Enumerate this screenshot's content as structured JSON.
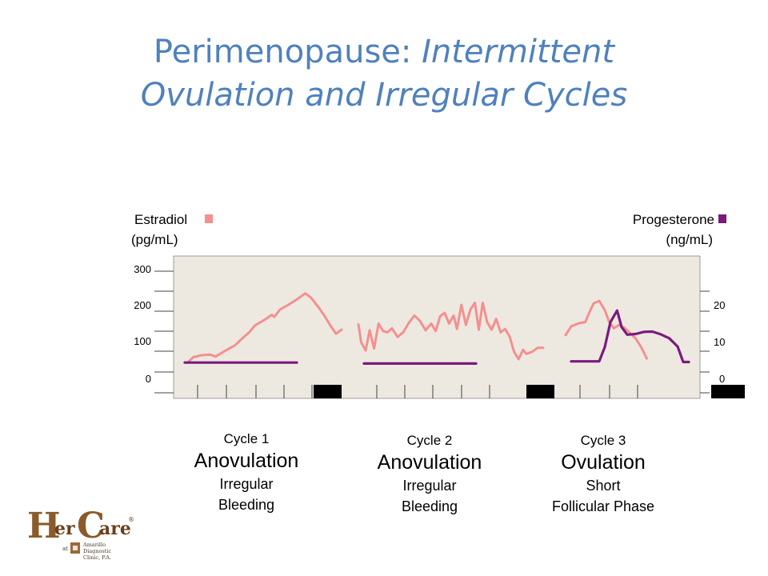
{
  "title": {
    "line1_plain": "Perimenopause: ",
    "line1_italic": "Intermittent",
    "line2_italic": "Ovulation and Irregular Cycles"
  },
  "colors": {
    "title": "#4f81bd",
    "estradiol": "#f4908e",
    "progesterone": "#7b1a7e",
    "panel": "#ede9e1",
    "menses": "#000000"
  },
  "logo": {
    "text_h": "H",
    "text_er": "er",
    "text_c": "C",
    "text_are": "are",
    "reg": "®",
    "at": "at",
    "clinic_line1": "Amarillo",
    "clinic_line2": "Diagnostic",
    "clinic_line3": "Clinic, P.A."
  },
  "chart_data": {
    "type": "line",
    "left_axis": {
      "label_line1": "Estradiol",
      "label_line2": "(pg/mL)",
      "ticks": [
        "300",
        "200",
        "100",
        "0"
      ],
      "range": [
        0,
        300
      ]
    },
    "right_axis": {
      "label_line1": "Progesterone",
      "label_line2": "(ng/mL)",
      "ticks": [
        "20",
        "10",
        "0"
      ],
      "range": [
        0,
        20
      ]
    },
    "series": [
      {
        "name": "Estradiol",
        "color": "#f4908e",
        "axis": "left",
        "segments": [
          [
            [
              0.5,
              28
            ],
            [
              1.5,
              44
            ],
            [
              3,
              50
            ],
            [
              4.5,
              52
            ],
            [
              5.5,
              46
            ],
            [
              7,
              61
            ],
            [
              9,
              80
            ],
            [
              10,
              96
            ],
            [
              11.5,
              118
            ],
            [
              12.5,
              138
            ],
            [
              13.5,
              148
            ],
            [
              14.5,
              158
            ],
            [
              15.5,
              170
            ],
            [
              16,
              164
            ],
            [
              17,
              186
            ],
            [
              18.5,
              200
            ],
            [
              20,
              216
            ],
            [
              21.5,
              234
            ],
            [
              22.5,
              222
            ],
            [
              24,
              190
            ],
            [
              25,
              166
            ],
            [
              26,
              138
            ],
            [
              27,
              114
            ],
            [
              28,
              126
            ]
          ],
          [
            [
              31,
              142
            ],
            [
              31.5,
              88
            ],
            [
              32.3,
              64
            ],
            [
              33,
              124
            ],
            [
              33.8,
              70
            ],
            [
              34.6,
              144
            ],
            [
              35.4,
              122
            ],
            [
              36.2,
              118
            ],
            [
              37,
              130
            ],
            [
              38,
              104
            ],
            [
              39,
              118
            ],
            [
              40,
              146
            ],
            [
              41,
              168
            ],
            [
              42,
              152
            ],
            [
              43,
              124
            ],
            [
              44,
              144
            ],
            [
              44.8,
              122
            ],
            [
              45.6,
              166
            ],
            [
              46.4,
              176
            ],
            [
              47.2,
              144
            ],
            [
              48,
              168
            ],
            [
              48.6,
              128
            ],
            [
              49.4,
              200
            ],
            [
              50.2,
              140
            ],
            [
              51,
              186
            ],
            [
              51.8,
              206
            ],
            [
              52.5,
              126
            ],
            [
              53.2,
              206
            ],
            [
              54,
              148
            ],
            [
              54.8,
              126
            ],
            [
              55.6,
              158
            ],
            [
              56.4,
              118
            ],
            [
              57.2,
              128
            ],
            [
              58,
              106
            ],
            [
              58.8,
              60
            ],
            [
              59.6,
              38
            ],
            [
              60.4,
              66
            ],
            [
              61,
              54
            ],
            [
              62,
              60
            ],
            [
              63,
              72
            ],
            [
              64,
              72
            ]
          ],
          [
            [
              68,
              110
            ],
            [
              69,
              136
            ],
            [
              70.5,
              146
            ],
            [
              71.5,
              148
            ],
            [
              72.2,
              176
            ],
            [
              73,
              204
            ],
            [
              74,
              212
            ],
            [
              75,
              184
            ],
            [
              75.8,
              148
            ],
            [
              76.6,
              130
            ],
            [
              77.5,
              140
            ],
            [
              78.5,
              132
            ],
            [
              79.5,
              116
            ],
            [
              80.5,
              100
            ],
            [
              81.5,
              74
            ],
            [
              82.5,
              40
            ]
          ]
        ]
      },
      {
        "name": "Progesterone",
        "color": "#7b1a7e",
        "axis": "right",
        "segments": [
          [
            [
              0,
              3.1
            ],
            [
              20,
              3.1
            ]
          ],
          [
            [
              32,
              2.8
            ],
            [
              52,
              2.8
            ]
          ],
          [
            [
              69,
              3.5
            ],
            [
              74,
              3.5
            ],
            [
              75,
              8.2
            ],
            [
              76,
              16.4
            ],
            [
              77.2,
              20.2
            ],
            [
              78,
              14.8
            ],
            [
              79,
              12.3
            ],
            [
              80.5,
              12.5
            ],
            [
              82,
              13.2
            ],
            [
              83.5,
              13.3
            ],
            [
              85,
              12.4
            ],
            [
              86.5,
              11.1
            ],
            [
              88,
              8.4
            ],
            [
              89,
              3.3
            ],
            [
              90,
              3.3
            ]
          ]
        ]
      }
    ],
    "x_range": [
      -2,
      92
    ],
    "menses_bars": [
      [
        23,
        28
      ],
      [
        61,
        66
      ],
      [
        94,
        100
      ]
    ],
    "cycles": [
      {
        "label": "Cycle 1",
        "status": "Anovulation",
        "desc_line1": "Irregular",
        "desc_line2": "Bleeding"
      },
      {
        "label": "Cycle 2",
        "status": "Anovulation",
        "desc_line1": "Irregular",
        "desc_line2": "Bleeding"
      },
      {
        "label": "Cycle 3",
        "status": "Ovulation",
        "desc_line1": "Short",
        "desc_line2": "Follicular Phase"
      }
    ]
  }
}
